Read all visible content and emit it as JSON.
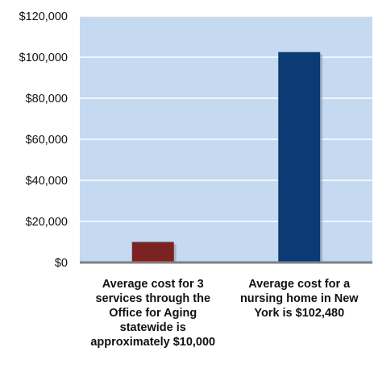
{
  "chart_data": {
    "type": "bar",
    "categories": [
      [
        "Average cost for 3",
        "services through the",
        "Office for Aging",
        "statewide is",
        "approximately $10,000"
      ],
      [
        "Average cost for a",
        "nursing home in New",
        "York is $102,480"
      ]
    ],
    "values": [
      10000,
      102480
    ],
    "bar_colors": [
      "#7B2323",
      "#0B3A75"
    ],
    "ylim": [
      0,
      120000
    ],
    "yticks": [
      0,
      20000,
      40000,
      60000,
      80000,
      100000,
      120000
    ],
    "ytick_labels": [
      "$0",
      "$20,000",
      "$40,000",
      "$60,000",
      "$80,000",
      "$100,000",
      "$120,000"
    ],
    "grid": true,
    "plot_background": "#C5D9F1",
    "title": "",
    "xlabel": "",
    "ylabel": ""
  }
}
